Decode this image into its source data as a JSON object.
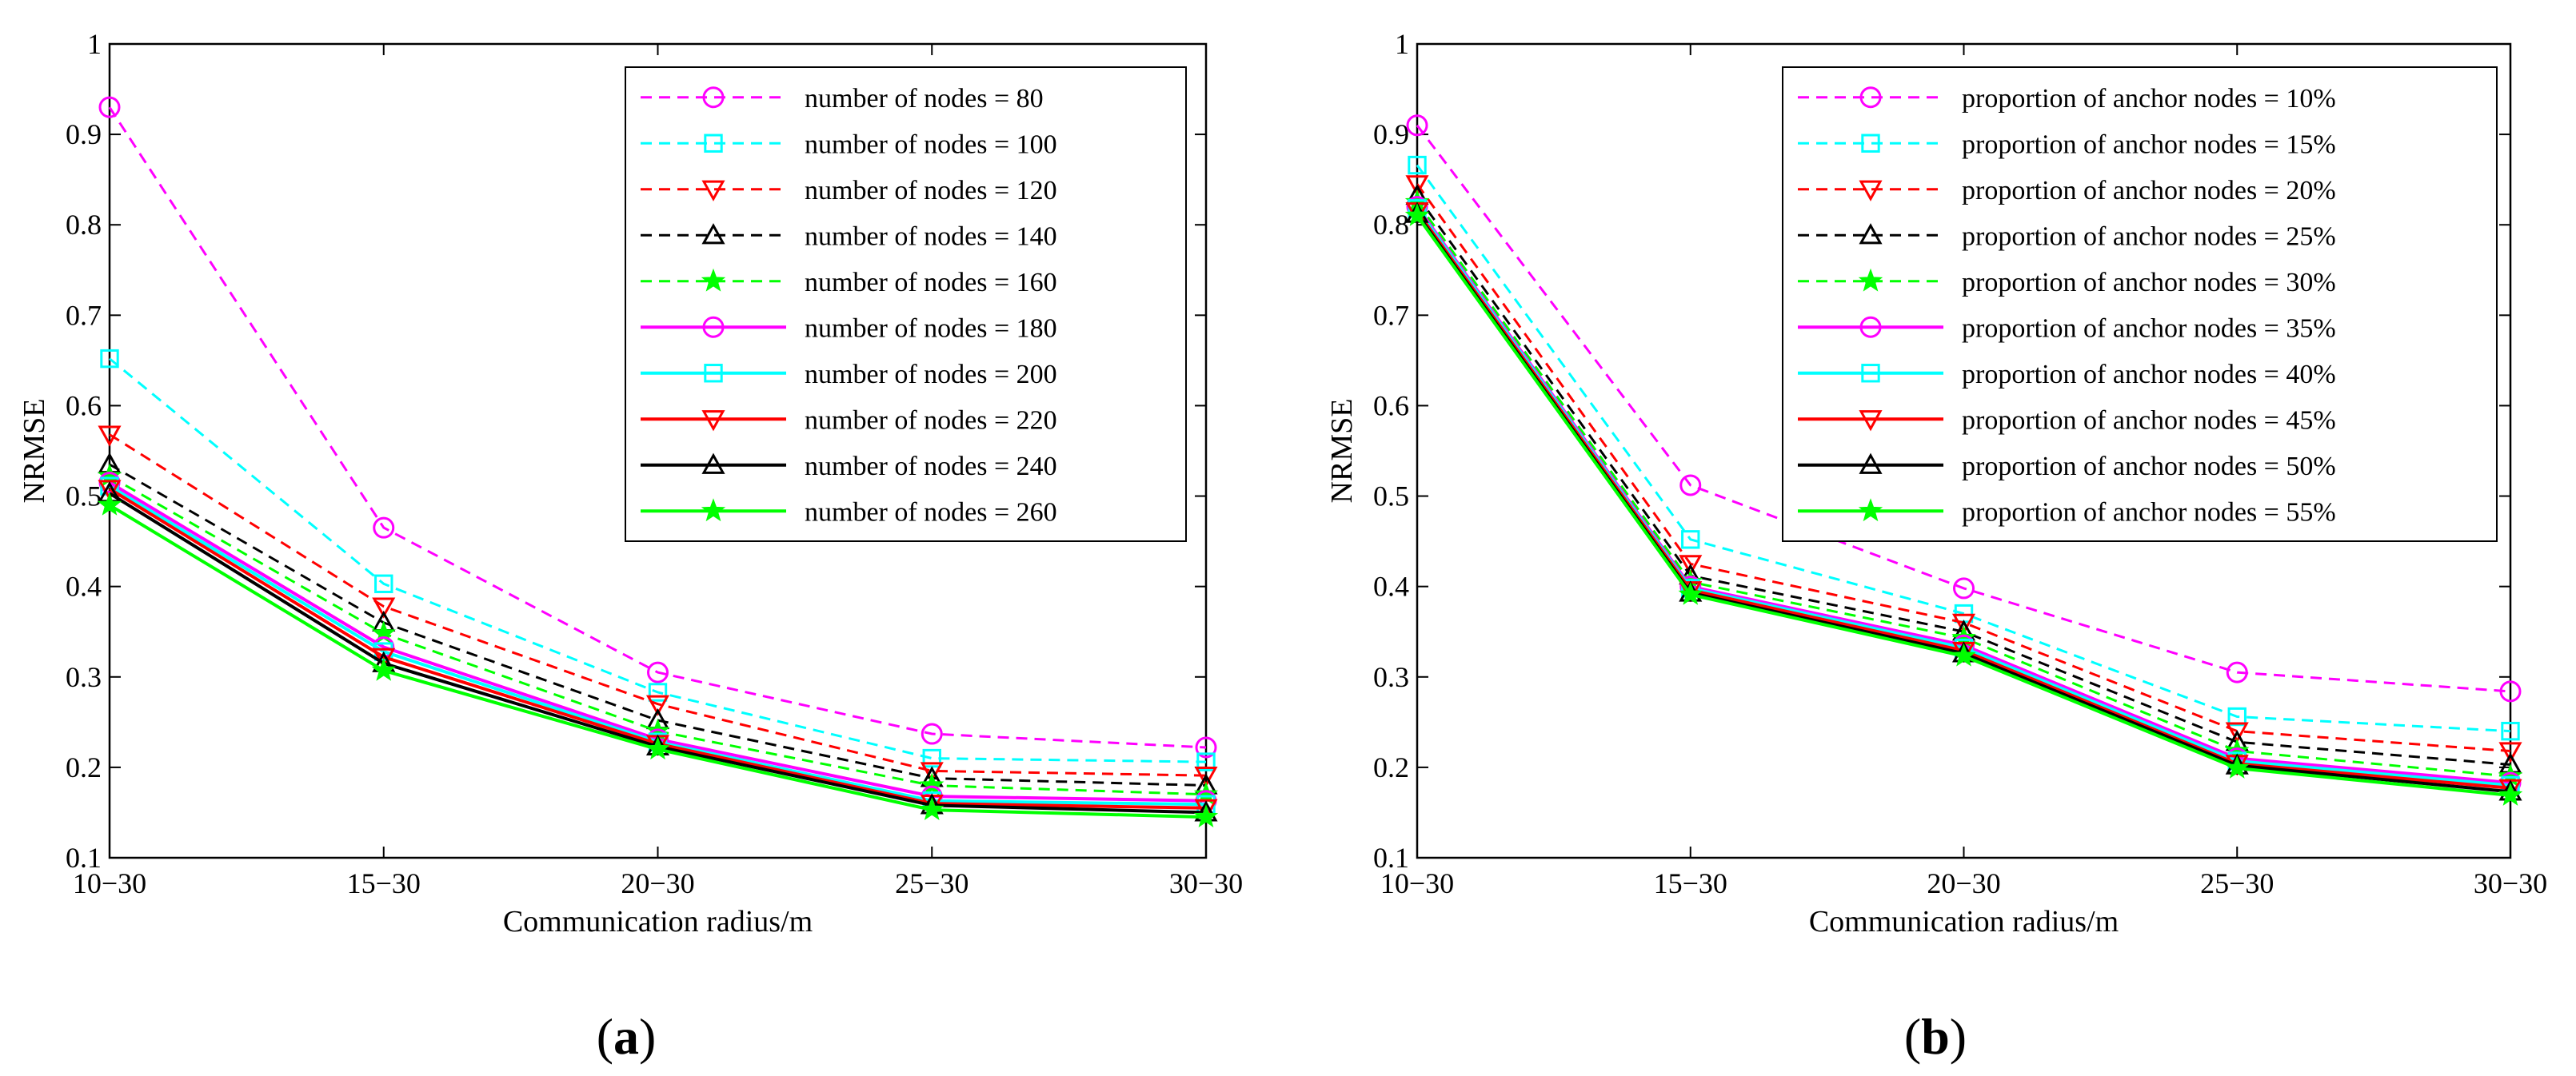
{
  "chart_data": [
    {
      "type": "line",
      "panel": "(a)",
      "panel_letter": "a",
      "title": "",
      "xlabel": "Communication radius/m",
      "ylabel": "NRMSE",
      "categories": [
        "10−30",
        "15−30",
        "20−30",
        "25−30",
        "30−30"
      ],
      "ylim": [
        0.1,
        1
      ],
      "yticks": [
        "0.1",
        "0.2",
        "0.3",
        "0.4",
        "0.5",
        "0.6",
        "0.7",
        "0.8",
        "0.9",
        "1"
      ],
      "legend_position": "top-right",
      "series": [
        {
          "name": "number of nodes = 80",
          "values": [
            0.93,
            0.465,
            0.305,
            0.237,
            0.222
          ],
          "color": "#ff00ff",
          "dash": "dashed",
          "marker": "circle"
        },
        {
          "name": "number of nodes = 100",
          "values": [
            0.652,
            0.403,
            0.283,
            0.21,
            0.206
          ],
          "color": "#00ffff",
          "dash": "dashed",
          "marker": "square"
        },
        {
          "name": "number of nodes = 120",
          "values": [
            0.568,
            0.378,
            0.27,
            0.196,
            0.191
          ],
          "color": "#ff0000",
          "dash": "dashed",
          "marker": "triangle-down"
        },
        {
          "name": "number of nodes = 140",
          "values": [
            0.535,
            0.36,
            0.252,
            0.188,
            0.18
          ],
          "color": "#000000",
          "dash": "dashed",
          "marker": "triangle-up"
        },
        {
          "name": "number of nodes = 160",
          "values": [
            0.522,
            0.348,
            0.24,
            0.18,
            0.17
          ],
          "color": "#00ff00",
          "dash": "dashed",
          "marker": "star"
        },
        {
          "name": "number of nodes = 180",
          "values": [
            0.515,
            0.333,
            0.231,
            0.168,
            0.163
          ],
          "color": "#ff00ff",
          "dash": "solid",
          "marker": "circle"
        },
        {
          "name": "number of nodes = 200",
          "values": [
            0.511,
            0.328,
            0.228,
            0.163,
            0.159
          ],
          "color": "#00ffff",
          "dash": "solid",
          "marker": "square"
        },
        {
          "name": "number of nodes = 220",
          "values": [
            0.508,
            0.322,
            0.226,
            0.16,
            0.155
          ],
          "color": "#ff0000",
          "dash": "solid",
          "marker": "triangle-down"
        },
        {
          "name": "number of nodes = 240",
          "values": [
            0.503,
            0.315,
            0.223,
            0.158,
            0.15
          ],
          "color": "#000000",
          "dash": "solid",
          "marker": "triangle-up"
        },
        {
          "name": "number of nodes = 260",
          "values": [
            0.49,
            0.307,
            0.22,
            0.153,
            0.145
          ],
          "color": "#00ff00",
          "dash": "solid",
          "marker": "star"
        }
      ]
    },
    {
      "type": "line",
      "panel": "(b)",
      "panel_letter": "b",
      "title": "",
      "xlabel": "Communication radius/m",
      "ylabel": "NRMSE",
      "categories": [
        "10−30",
        "15−30",
        "20−30",
        "25−30",
        "30−30"
      ],
      "ylim": [
        0.1,
        1
      ],
      "yticks": [
        "0.1",
        "0.2",
        "0.3",
        "0.4",
        "0.5",
        "0.6",
        "0.7",
        "0.8",
        "0.9",
        "1"
      ],
      "legend_position": "top-right",
      "series": [
        {
          "name": "proportion of anchor nodes = 10%",
          "values": [
            0.91,
            0.512,
            0.398,
            0.305,
            0.284
          ],
          "color": "#ff00ff",
          "dash": "dashed",
          "marker": "circle"
        },
        {
          "name": "proportion of anchor nodes = 15%",
          "values": [
            0.866,
            0.452,
            0.37,
            0.256,
            0.24
          ],
          "color": "#00ffff",
          "dash": "dashed",
          "marker": "square"
        },
        {
          "name": "proportion of anchor nodes = 20%",
          "values": [
            0.845,
            0.425,
            0.36,
            0.24,
            0.218
          ],
          "color": "#ff0000",
          "dash": "dashed",
          "marker": "triangle-down"
        },
        {
          "name": "proportion of anchor nodes = 25%",
          "values": [
            0.832,
            0.412,
            0.35,
            0.228,
            0.203
          ],
          "color": "#000000",
          "dash": "dashed",
          "marker": "triangle-up"
        },
        {
          "name": "proportion of anchor nodes = 30%",
          "values": [
            0.825,
            0.405,
            0.343,
            0.218,
            0.19
          ],
          "color": "#00ff00",
          "dash": "dashed",
          "marker": "star"
        },
        {
          "name": "proportion of anchor nodes = 35%",
          "values": [
            0.82,
            0.4,
            0.335,
            0.21,
            0.183
          ],
          "color": "#ff00ff",
          "dash": "solid",
          "marker": "circle"
        },
        {
          "name": "proportion of anchor nodes = 40%",
          "values": [
            0.818,
            0.398,
            0.332,
            0.207,
            0.18
          ],
          "color": "#00ffff",
          "dash": "solid",
          "marker": "square"
        },
        {
          "name": "proportion of anchor nodes = 45%",
          "values": [
            0.815,
            0.396,
            0.329,
            0.204,
            0.177
          ],
          "color": "#ff0000",
          "dash": "solid",
          "marker": "triangle-down"
        },
        {
          "name": "proportion of anchor nodes = 50%",
          "values": [
            0.812,
            0.393,
            0.326,
            0.202,
            0.173
          ],
          "color": "#000000",
          "dash": "solid",
          "marker": "triangle-up"
        },
        {
          "name": "proportion of anchor nodes = 55%",
          "values": [
            0.81,
            0.391,
            0.323,
            0.199,
            0.169
          ],
          "color": "#00ff00",
          "dash": "solid",
          "marker": "star"
        }
      ]
    }
  ]
}
